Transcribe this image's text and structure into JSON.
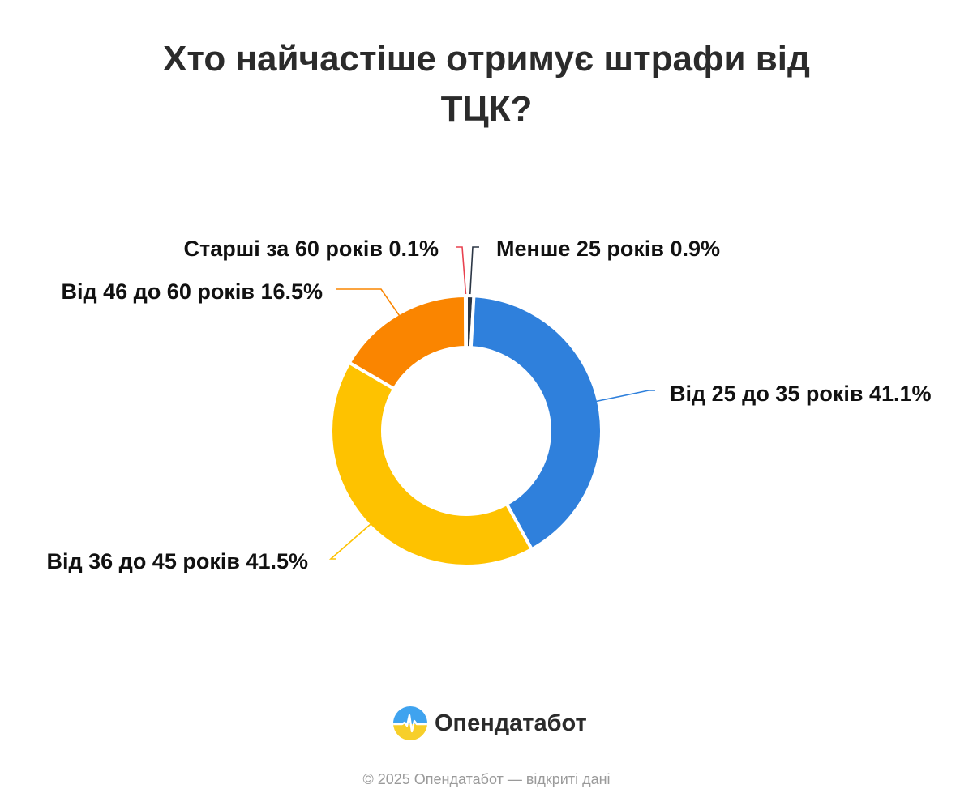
{
  "title": "Хто найчастіше отримує штрафи від ТЦК?",
  "chart_data": {
    "type": "pie",
    "variant": "donut",
    "title": "Хто найчастіше отримує штрафи від ТЦК?",
    "categories": [
      "Менше 25 років",
      "Від 25 до 35 років",
      "Від 36 до 45 років",
      "Від 46 до 60 років",
      "Старші за 60 років"
    ],
    "values": [
      0.9,
      41.1,
      41.5,
      16.5,
      0.1
    ],
    "value_labels": [
      "0.9%",
      "41.1%",
      "41.5%",
      "16.5%",
      "0.1%"
    ],
    "colors": [
      "#2b3645",
      "#2f80dc",
      "#fec200",
      "#fa8500",
      "#e8414f"
    ],
    "legend": "none (labels on slices)"
  },
  "brand": {
    "name": "Опендатабот"
  },
  "footer": "© 2025 Опендатабот — відкриті дані"
}
